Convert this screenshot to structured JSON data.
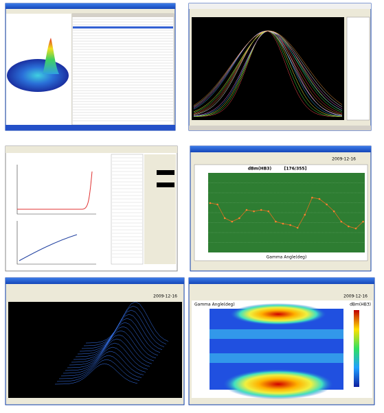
{
  "panel4": {
    "plot_title": "dBm(HB3)",
    "index": "[176/355]",
    "date": "2009-12-16",
    "x_label": "Gamma Angle(deg)"
  },
  "panel5": {
    "date": "2009-12-16"
  },
  "panel6": {
    "date": "2009-12-16",
    "y_label": "Gamma Angle(deg)",
    "bar_label": "dBm(HB3)"
  }
}
